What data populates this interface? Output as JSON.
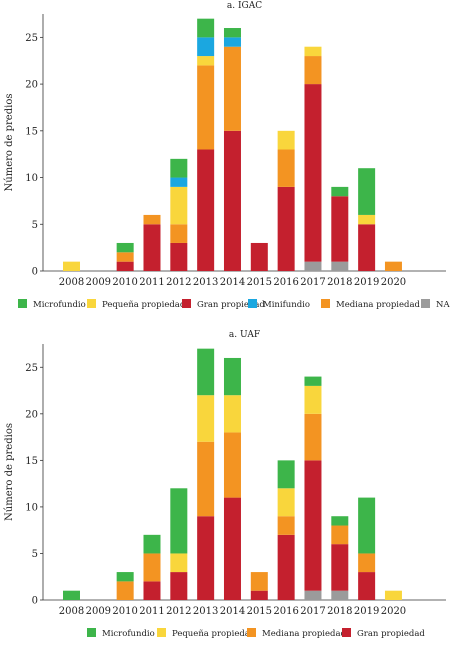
{
  "colors": {
    "Microfundio": "#3db54a",
    "Pequeña propiedad": "#f9d63c",
    "Gran propiedad": "#c4202e",
    "Minifundio": "#1ba7e0",
    "Mediana propiedad": "#f39422",
    "NA": "#9b9b9b"
  },
  "chart_data": [
    {
      "type": "bar",
      "stacked": true,
      "title": "a. IGAC",
      "ylabel": "Número de predios",
      "ylim": [
        0,
        27.5
      ],
      "yticks": [
        0,
        5,
        10,
        15,
        20,
        25
      ],
      "categories": [
        "2008",
        "2009",
        "2010",
        "2011",
        "2012",
        "2013",
        "2014",
        "2015",
        "2016",
        "2017",
        "2018",
        "2019",
        "2020"
      ],
      "legend": [
        "Microfundio",
        "Pequeña propiedad",
        "Gran propiedad",
        "Minifundio",
        "Mediana propiedad",
        "NA"
      ],
      "legend_position": "bottom",
      "series": [
        {
          "name": "NA",
          "values": [
            0,
            0,
            0,
            0,
            0,
            0,
            0,
            0,
            0,
            1,
            1,
            0,
            0
          ]
        },
        {
          "name": "Gran propiedad",
          "values": [
            0,
            0,
            1,
            5,
            3,
            13,
            15,
            3,
            9,
            19,
            7,
            5,
            0
          ]
        },
        {
          "name": "Mediana propiedad",
          "values": [
            0,
            0,
            1,
            1,
            2,
            9,
            9,
            0,
            4,
            3,
            0,
            0,
            1
          ]
        },
        {
          "name": "Pequeña propiedad",
          "values": [
            1,
            0,
            0,
            0,
            4,
            1,
            0,
            0,
            2,
            1,
            0,
            1,
            0
          ]
        },
        {
          "name": "Minifundio",
          "values": [
            0,
            0,
            0,
            0,
            1,
            2,
            1,
            0,
            0,
            0,
            0,
            0,
            0
          ]
        },
        {
          "name": "Microfundio",
          "values": [
            0,
            0,
            1,
            0,
            2,
            2,
            1,
            0,
            0,
            0,
            1,
            5,
            0
          ]
        }
      ]
    },
    {
      "type": "bar",
      "stacked": true,
      "title": "a. UAF",
      "ylabel": "Número de predios",
      "ylim": [
        0,
        27.5
      ],
      "yticks": [
        0,
        5,
        10,
        15,
        20,
        25
      ],
      "categories": [
        "2008",
        "2009",
        "2010",
        "2011",
        "2012",
        "2013",
        "2014",
        "2015",
        "2016",
        "2017",
        "2018",
        "2019",
        "2020"
      ],
      "legend": [
        "Microfundio",
        "Pequeña propiedad",
        "Mediana propiedad",
        "Gran propiedad"
      ],
      "legend_position": "bottom",
      "series": [
        {
          "name": "NA",
          "values": [
            0,
            0,
            0,
            0,
            0,
            0,
            0,
            0,
            0,
            1,
            1,
            0,
            0
          ]
        },
        {
          "name": "Gran propiedad",
          "values": [
            0,
            0,
            0,
            2,
            3,
            9,
            11,
            1,
            7,
            14,
            5,
            3,
            0
          ]
        },
        {
          "name": "Mediana propiedad",
          "values": [
            0,
            0,
            2,
            3,
            0,
            8,
            7,
            2,
            2,
            5,
            2,
            2,
            0
          ]
        },
        {
          "name": "Pequeña propiedad",
          "values": [
            0,
            0,
            0,
            0,
            2,
            5,
            4,
            0,
            3,
            3,
            0,
            0,
            1
          ]
        },
        {
          "name": "Microfundio",
          "values": [
            1,
            0,
            1,
            2,
            7,
            5,
            4,
            0,
            3,
            1,
            1,
            6,
            0
          ]
        }
      ]
    }
  ]
}
